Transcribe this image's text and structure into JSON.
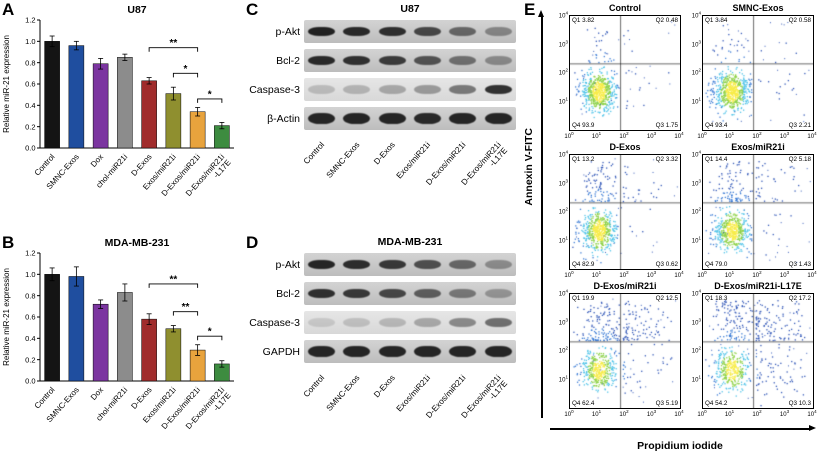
{
  "panels": {
    "a": "A",
    "b": "B",
    "c": "C",
    "d": "D",
    "e": "E"
  },
  "chart_data": [
    {
      "type": "bar",
      "panel": "A",
      "title": "U87",
      "xlabel": "",
      "ylabel": "Relative miR-21 expression",
      "categories": [
        "Control",
        "SMNC-Exos",
        "Dox",
        "chol-miR21i",
        "D-Exos",
        "Exos/miR21i",
        "D-Exos/miR21i",
        "D-Exos/miR21i\n-L17E"
      ],
      "values": [
        1.0,
        0.96,
        0.79,
        0.85,
        0.63,
        0.51,
        0.34,
        0.21
      ],
      "errors": [
        0.05,
        0.04,
        0.05,
        0.03,
        0.03,
        0.06,
        0.04,
        0.03
      ],
      "bar_colors": [
        "#141414",
        "#1f4e9f",
        "#7b35a0",
        "#8c8c8c",
        "#a02c2c",
        "#8f8f2f",
        "#e8a33d",
        "#3d8c40"
      ],
      "ylim": [
        0,
        1.2
      ],
      "yticks": [
        0.0,
        0.2,
        0.4,
        0.6,
        0.8,
        1.0,
        1.2
      ],
      "grid": false,
      "significance": [
        {
          "from": 4,
          "to": 6,
          "label": "**"
        },
        {
          "from": 5,
          "to": 6,
          "label": "*"
        },
        {
          "from": 6,
          "to": 7,
          "label": "*"
        }
      ]
    },
    {
      "type": "bar",
      "panel": "B",
      "title": "MDA-MB-231",
      "xlabel": "",
      "ylabel": "Relative miR-21 expression",
      "categories": [
        "Control",
        "SMNC-Exos",
        "Dox",
        "chol-miR21i",
        "D-Exos",
        "Exos/miR21i",
        "D-Exos/miR21i",
        "D-Exos/miR21i\n-L17E"
      ],
      "values": [
        1.0,
        0.98,
        0.72,
        0.83,
        0.58,
        0.49,
        0.29,
        0.16
      ],
      "errors": [
        0.06,
        0.09,
        0.04,
        0.08,
        0.05,
        0.03,
        0.05,
        0.03
      ],
      "bar_colors": [
        "#141414",
        "#1f4e9f",
        "#7b35a0",
        "#8c8c8c",
        "#a02c2c",
        "#8f8f2f",
        "#e8a33d",
        "#3d8c40"
      ],
      "ylim": [
        0,
        1.2
      ],
      "yticks": [
        0.0,
        0.2,
        0.4,
        0.6,
        0.8,
        1.0,
        1.2
      ],
      "grid": false,
      "significance": [
        {
          "from": 4,
          "to": 6,
          "label": "**"
        },
        {
          "from": 5,
          "to": 6,
          "label": "**"
        },
        {
          "from": 6,
          "to": 7,
          "label": "*"
        }
      ]
    },
    {
      "type": "scatter",
      "panel": "E",
      "xlabel": "Propidium iodide",
      "ylabel": "Annexin V-FITC",
      "xscale": "log",
      "yscale": "log",
      "xlim": [
        1,
        10000
      ],
      "ylim": [
        1,
        10000
      ],
      "point_palette": [
        "#f7ec4a",
        "#8fd24a",
        "#4fc3e8",
        "#3a7bd5",
        "#3358b8"
      ],
      "subplots": [
        {
          "title": "Control",
          "quadrant_percent": {
            "Q1": 3.82,
            "Q2": 0.48,
            "Q3": 1.75,
            "Q4": 93.9
          }
        },
        {
          "title": "SMNC-Exos",
          "quadrant_percent": {
            "Q1": 3.84,
            "Q2": 0.58,
            "Q3": 2.21,
            "Q4": 93.4
          }
        },
        {
          "title": "D-Exos",
          "quadrant_percent": {
            "Q1": 13.2,
            "Q2": 3.32,
            "Q3": 0.62,
            "Q4": 82.9
          }
        },
        {
          "title": "Exos/miR21i",
          "quadrant_percent": {
            "Q1": 14.4,
            "Q2": 5.18,
            "Q3": 1.43,
            "Q4": 79.0
          }
        },
        {
          "title": "D-Exos/miR21i",
          "quadrant_percent": {
            "Q1": 19.9,
            "Q2": 12.5,
            "Q3": 5.19,
            "Q4": 62.4
          }
        },
        {
          "title": "D-Exos/miR21i-L17E",
          "quadrant_percent": {
            "Q1": 18.3,
            "Q2": 17.2,
            "Q3": 10.3,
            "Q4": 54.2
          }
        }
      ]
    }
  ],
  "blots": {
    "c": {
      "title": "U87",
      "band_color": "#141414",
      "rows": [
        {
          "label": "p-Akt",
          "bands": [
            0.92,
            0.88,
            0.85,
            0.72,
            0.55,
            0.38
          ]
        },
        {
          "label": "Bcl-2",
          "bands": [
            0.88,
            0.84,
            0.78,
            0.66,
            0.5,
            0.36
          ]
        },
        {
          "label": "Caspase-3",
          "bands": [
            0.18,
            0.22,
            0.28,
            0.34,
            0.5,
            0.85
          ]
        },
        {
          "label": "β-Actin",
          "bands": [
            0.9,
            0.9,
            0.9,
            0.88,
            0.9,
            0.9
          ]
        }
      ],
      "lanes": [
        "Control",
        "SMNC-Exos",
        "D-Exos",
        "Exos/miR21i",
        "D-Exos/miR21i",
        "D-Exos/miR21i\n-L17E"
      ]
    },
    "d": {
      "title": "MDA-MB-231",
      "band_color": "#141414",
      "rows": [
        {
          "label": "p-Akt",
          "bands": [
            0.9,
            0.86,
            0.8,
            0.68,
            0.55,
            0.35
          ]
        },
        {
          "label": "Bcl-2",
          "bands": [
            0.85,
            0.8,
            0.72,
            0.6,
            0.46,
            0.3
          ]
        },
        {
          "label": "Caspase-3",
          "bands": [
            0.12,
            0.16,
            0.2,
            0.28,
            0.42,
            0.55
          ]
        },
        {
          "label": "GAPDH",
          "bands": [
            0.9,
            0.9,
            0.9,
            0.9,
            0.9,
            0.9
          ]
        }
      ],
      "lanes": [
        "Control",
        "SMNC-Exos",
        "D-Exos",
        "Exos/miR21i",
        "D-Exos/miR21i",
        "D-Exos/miR21i\n-L17E"
      ]
    }
  },
  "flow": {
    "yticks_exp": [
      4,
      3,
      2,
      1
    ],
    "xticks_exp": [
      0,
      1,
      2,
      3,
      4
    ]
  }
}
